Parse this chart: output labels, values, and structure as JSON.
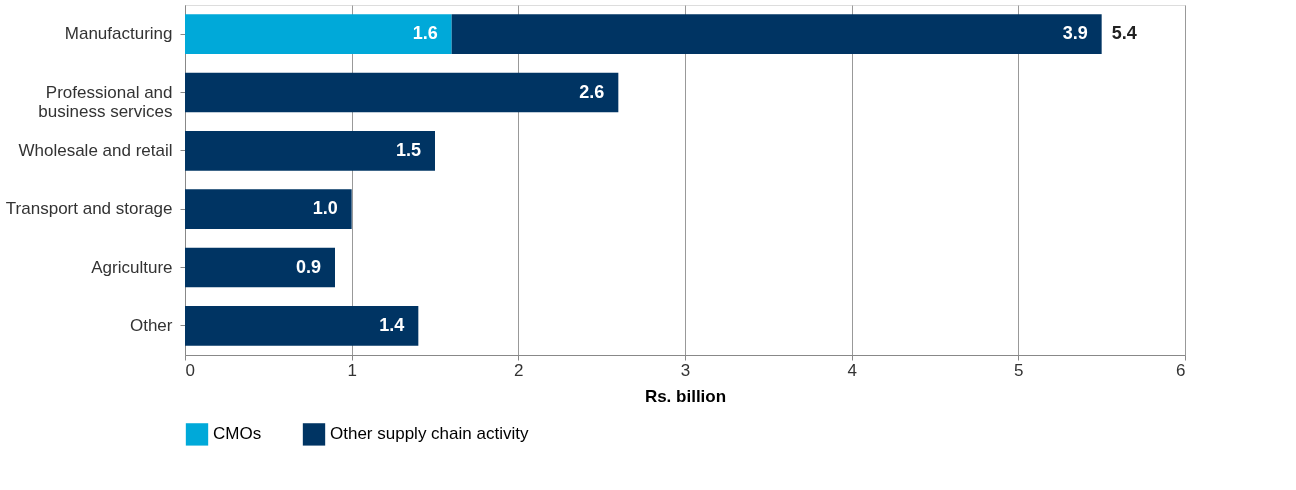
{
  "chart_data": {
    "type": "bar",
    "orientation": "horizontal",
    "stacked": true,
    "categories": [
      "Manufacturing",
      "Professional and business services",
      "Wholesale and retail",
      "Transport and storage",
      "Agriculture",
      "Other"
    ],
    "series": [
      {
        "name": "CMOs",
        "color": "#00a9d9",
        "values": [
          1.6,
          null,
          null,
          null,
          null,
          null
        ],
        "value_labels": [
          "1.6",
          null,
          null,
          null,
          null,
          null
        ]
      },
      {
        "name": "Other supply chain activity",
        "color": "#003463",
        "values": [
          3.9,
          2.6,
          1.5,
          1.0,
          0.9,
          1.4
        ],
        "value_labels": [
          "3.9",
          "2.6",
          "1.5",
          "1.0",
          "0.9",
          "1.4"
        ]
      }
    ],
    "totals": [
      "5.4",
      null,
      null,
      null,
      null,
      null
    ],
    "xlabel": "Rs. billion",
    "xlim": [
      0,
      6
    ],
    "xticks": [
      0,
      1,
      2,
      3,
      4,
      5,
      6
    ],
    "grid": "x",
    "legend": "bottom"
  }
}
